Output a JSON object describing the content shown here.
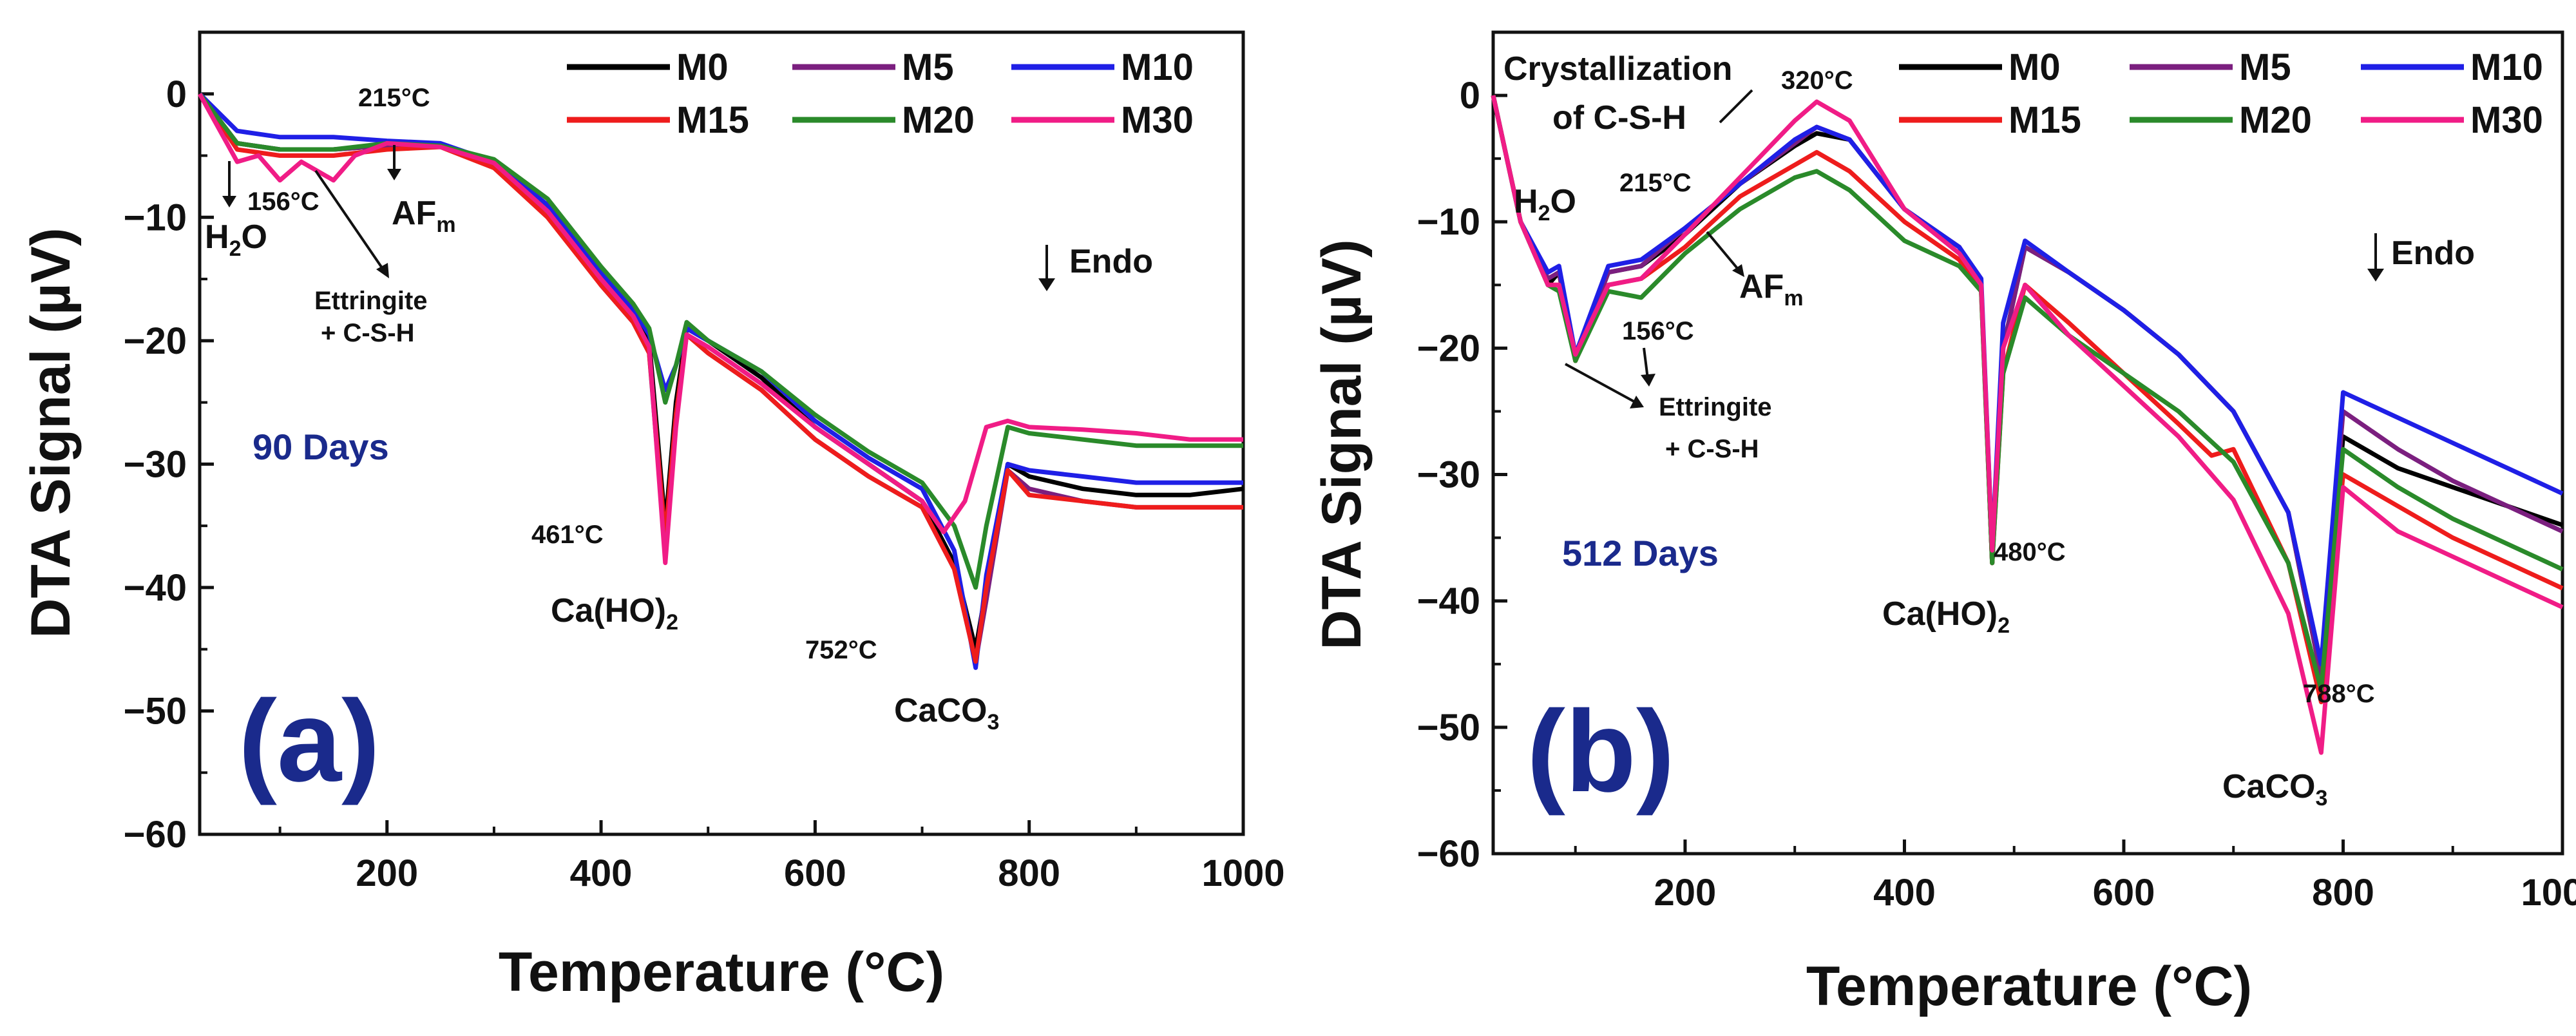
{
  "colors": {
    "M0": "#000000",
    "M5": "#7b1f7f",
    "M10": "#1f1fe6",
    "M15": "#ee1c1c",
    "M20": "#2a8a2a",
    "M30": "#f01c86",
    "panel_label": "#1a2a8c"
  },
  "chart_data": [
    {
      "type": "line",
      "panel": "(a)",
      "period": "90 Days",
      "xlabel": "Temperature (°C)",
      "ylabel": "DTA Signal (µV)",
      "xlim": [
        25,
        1000
      ],
      "ylim": [
        -60,
        5
      ],
      "xticks": [
        200,
        400,
        600,
        800,
        1000
      ],
      "yticks": [
        0,
        -10,
        -20,
        -30,
        -40,
        -50,
        -60
      ],
      "legend_position": "top-right",
      "annotations": {
        "t215": "215°C",
        "t156": "156°C",
        "h2o": "H2O",
        "afm": "AFm",
        "ettringite": "Ettringite",
        "csh": "+ C-S-H",
        "endo": "Endo",
        "t461": "461°C",
        "caoh": "Ca(HO)2",
        "t752": "752°C",
        "caco3": "CaCO3"
      },
      "series": [
        {
          "name": "M0",
          "x": [
            25,
            60,
            100,
            150,
            200,
            250,
            300,
            350,
            400,
            430,
            445,
            460,
            470,
            480,
            500,
            550,
            600,
            650,
            700,
            730,
            750,
            760,
            780,
            800,
            850,
            900,
            950,
            1000
          ],
          "y": [
            0,
            -4,
            -4.5,
            -4.5,
            -4.2,
            -4.1,
            -5.5,
            -9,
            -15,
            -18,
            -20,
            -35,
            -25,
            -19,
            -20,
            -23,
            -27,
            -30,
            -33,
            -38,
            -45,
            -40,
            -30,
            -31,
            -32,
            -32.5,
            -32.5,
            -32
          ]
        },
        {
          "name": "M5",
          "x": [
            25,
            60,
            100,
            150,
            200,
            250,
            300,
            350,
            400,
            430,
            445,
            460,
            470,
            480,
            500,
            550,
            600,
            650,
            700,
            730,
            750,
            760,
            780,
            800,
            850,
            900,
            950,
            1000
          ],
          "y": [
            0,
            -4,
            -4.5,
            -4.5,
            -4.2,
            -4.2,
            -5.8,
            -9.5,
            -15.5,
            -18.5,
            -21,
            -37,
            -26,
            -19.5,
            -21,
            -24,
            -28,
            -31,
            -33.5,
            -38.5,
            -46,
            -41,
            -30.5,
            -32,
            -33,
            -33.5,
            -33.5,
            -33.5
          ]
        },
        {
          "name": "M10",
          "x": [
            25,
            60,
            100,
            150,
            200,
            250,
            300,
            350,
            400,
            430,
            445,
            460,
            470,
            480,
            500,
            550,
            600,
            650,
            700,
            730,
            750,
            760,
            780,
            800,
            850,
            900,
            950,
            1000
          ],
          "y": [
            0,
            -3,
            -3.5,
            -3.5,
            -3.8,
            -4,
            -5.5,
            -9,
            -14.5,
            -17.5,
            -19.5,
            -24,
            -22,
            -19,
            -20,
            -22.5,
            -26.5,
            -29.5,
            -32,
            -37,
            -46.5,
            -39,
            -30,
            -30.5,
            -31,
            -31.5,
            -31.5,
            -31.5
          ]
        },
        {
          "name": "M15",
          "x": [
            25,
            60,
            100,
            150,
            200,
            250,
            300,
            350,
            400,
            430,
            445,
            460,
            470,
            480,
            500,
            550,
            600,
            650,
            700,
            730,
            750,
            760,
            780,
            800,
            850,
            900,
            950,
            1000
          ],
          "y": [
            0,
            -4.5,
            -5,
            -5,
            -4.5,
            -4.3,
            -6,
            -10,
            -15.5,
            -18.5,
            -21,
            -36,
            -26,
            -19.5,
            -21,
            -24,
            -28,
            -31,
            -33.5,
            -38.5,
            -46,
            -40,
            -30.5,
            -32.5,
            -33,
            -33.5,
            -33.5,
            -33.5
          ]
        },
        {
          "name": "M20",
          "x": [
            25,
            60,
            100,
            150,
            200,
            250,
            300,
            350,
            400,
            430,
            445,
            460,
            470,
            480,
            500,
            550,
            600,
            650,
            700,
            730,
            750,
            760,
            780,
            800,
            850,
            900,
            950,
            1000
          ],
          "y": [
            0,
            -4,
            -4.5,
            -4.5,
            -4,
            -4.2,
            -5.3,
            -8.5,
            -14,
            -17,
            -19,
            -25,
            -22,
            -18.5,
            -20,
            -22.5,
            -26,
            -29,
            -31.5,
            -35,
            -40,
            -35,
            -27,
            -27.5,
            -28,
            -28.5,
            -28.5,
            -28.5
          ]
        },
        {
          "name": "M30",
          "x": [
            25,
            60,
            80,
            100,
            120,
            150,
            170,
            200,
            250,
            300,
            350,
            400,
            430,
            445,
            460,
            470,
            480,
            500,
            550,
            600,
            650,
            700,
            720,
            740,
            760,
            780,
            800,
            850,
            900,
            950,
            1000
          ],
          "y": [
            0,
            -5.5,
            -5,
            -7,
            -5.5,
            -7,
            -5,
            -4,
            -4.3,
            -5.6,
            -9.5,
            -15,
            -18,
            -20.5,
            -38,
            -27,
            -19.5,
            -20.5,
            -23.5,
            -27,
            -30,
            -33,
            -35.5,
            -33,
            -27,
            -26.5,
            -27,
            -27.2,
            -27.5,
            -28,
            -28
          ]
        }
      ]
    },
    {
      "type": "line",
      "panel": "(b)",
      "period": "512 Days",
      "xlabel": "Temperature (°C)",
      "ylabel": "DTA Signal (µV)",
      "xlim": [
        25,
        1000
      ],
      "ylim": [
        -60,
        5
      ],
      "xticks": [
        200,
        400,
        600,
        800,
        1000
      ],
      "yticks": [
        0,
        -10,
        -20,
        -30,
        -40,
        -50,
        -60
      ],
      "legend_position": "top-right",
      "annotations": {
        "cryst1": "Crystallization",
        "cryst2": "of C-S-H",
        "t320": "320°C",
        "h2o": "H2O",
        "t215": "215°C",
        "afm": "AFm",
        "t156": "156°C",
        "ettringite": "Ettringite",
        "csh": "+ C-S-H",
        "endo": "Endo",
        "t480": "480°C",
        "caoh": "Ca(HO)2",
        "t788": "788°C",
        "caco3": "CaCO3"
      },
      "series": [
        {
          "name": "M0",
          "x": [
            25,
            50,
            75,
            85,
            100,
            130,
            160,
            200,
            250,
            300,
            320,
            350,
            400,
            450,
            470,
            480,
            490,
            510,
            550,
            600,
            650,
            700,
            750,
            780,
            800,
            850,
            900,
            950,
            1000
          ],
          "y": [
            0,
            -10,
            -15,
            -14,
            -21,
            -14,
            -13.5,
            -11,
            -7,
            -4,
            -3,
            -3.5,
            -9,
            -12,
            -15,
            -37,
            -20,
            -12,
            -14,
            -17,
            -20.5,
            -25,
            -33,
            -46,
            -27,
            -29.5,
            -31,
            -32.5,
            -34
          ]
        },
        {
          "name": "M5",
          "x": [
            25,
            50,
            75,
            85,
            100,
            130,
            160,
            200,
            250,
            300,
            320,
            350,
            400,
            450,
            470,
            480,
            490,
            510,
            550,
            600,
            650,
            700,
            750,
            780,
            800,
            850,
            900,
            950,
            1000
          ],
          "y": [
            0,
            -10,
            -14.5,
            -14,
            -21,
            -14,
            -13.5,
            -10.5,
            -7,
            -3.8,
            -2.5,
            -3.5,
            -9,
            -12,
            -15,
            -37,
            -20,
            -12,
            -14,
            -17,
            -20.5,
            -25,
            -33,
            -46,
            -25,
            -28,
            -30.5,
            -32.5,
            -34.5
          ]
        },
        {
          "name": "M10",
          "x": [
            25,
            50,
            75,
            85,
            100,
            130,
            160,
            200,
            250,
            300,
            320,
            350,
            400,
            450,
            470,
            480,
            490,
            510,
            550,
            600,
            650,
            700,
            750,
            780,
            800,
            850,
            900,
            950,
            1000
          ],
          "y": [
            0,
            -10,
            -14,
            -13.5,
            -20.5,
            -13.5,
            -13,
            -10.5,
            -7,
            -3.5,
            -2.5,
            -3.5,
            -9,
            -12,
            -14.5,
            -36,
            -18,
            -11.5,
            -14,
            -17,
            -20.5,
            -25,
            -33,
            -45,
            -23.5,
            -25.5,
            -27.5,
            -29.5,
            -31.5
          ]
        },
        {
          "name": "M15",
          "x": [
            25,
            50,
            75,
            85,
            100,
            130,
            160,
            200,
            250,
            300,
            320,
            350,
            400,
            450,
            470,
            480,
            490,
            510,
            550,
            600,
            650,
            680,
            700,
            750,
            780,
            800,
            850,
            900,
            950,
            1000
          ],
          "y": [
            0,
            -10,
            -15,
            -15,
            -21,
            -15,
            -14.5,
            -12,
            -8,
            -5.5,
            -4.5,
            -6,
            -10,
            -13,
            -15.5,
            -37,
            -22,
            -15,
            -18,
            -22,
            -26,
            -28.5,
            -28,
            -37,
            -48,
            -30,
            -32.5,
            -35,
            -37,
            -39
          ]
        },
        {
          "name": "M20",
          "x": [
            25,
            50,
            75,
            85,
            100,
            130,
            160,
            200,
            250,
            300,
            320,
            350,
            400,
            450,
            470,
            480,
            490,
            510,
            550,
            600,
            650,
            700,
            750,
            780,
            800,
            850,
            900,
            950,
            1000
          ],
          "y": [
            0,
            -10,
            -15,
            -15.5,
            -21,
            -15.5,
            -16,
            -12.5,
            -9,
            -6.5,
            -6,
            -7.5,
            -11.5,
            -13.5,
            -15.5,
            -37,
            -22,
            -16,
            -19,
            -22,
            -25,
            -29,
            -37,
            -47,
            -28,
            -31,
            -33.5,
            -35.5,
            -37.5
          ]
        },
        {
          "name": "M30",
          "x": [
            25,
            50,
            75,
            85,
            100,
            130,
            160,
            200,
            250,
            300,
            320,
            350,
            400,
            450,
            470,
            480,
            490,
            510,
            550,
            600,
            650,
            700,
            750,
            780,
            800,
            850,
            900,
            950,
            1000
          ],
          "y": [
            0,
            -10,
            -15,
            -15,
            -20.5,
            -15,
            -14.5,
            -11,
            -6.5,
            -2,
            -0.5,
            -2,
            -9,
            -12.5,
            -15,
            -36,
            -20,
            -15,
            -19,
            -23,
            -27,
            -32,
            -41,
            -52,
            -31,
            -34.5,
            -36.5,
            -38.5,
            -40.5
          ]
        }
      ]
    }
  ]
}
